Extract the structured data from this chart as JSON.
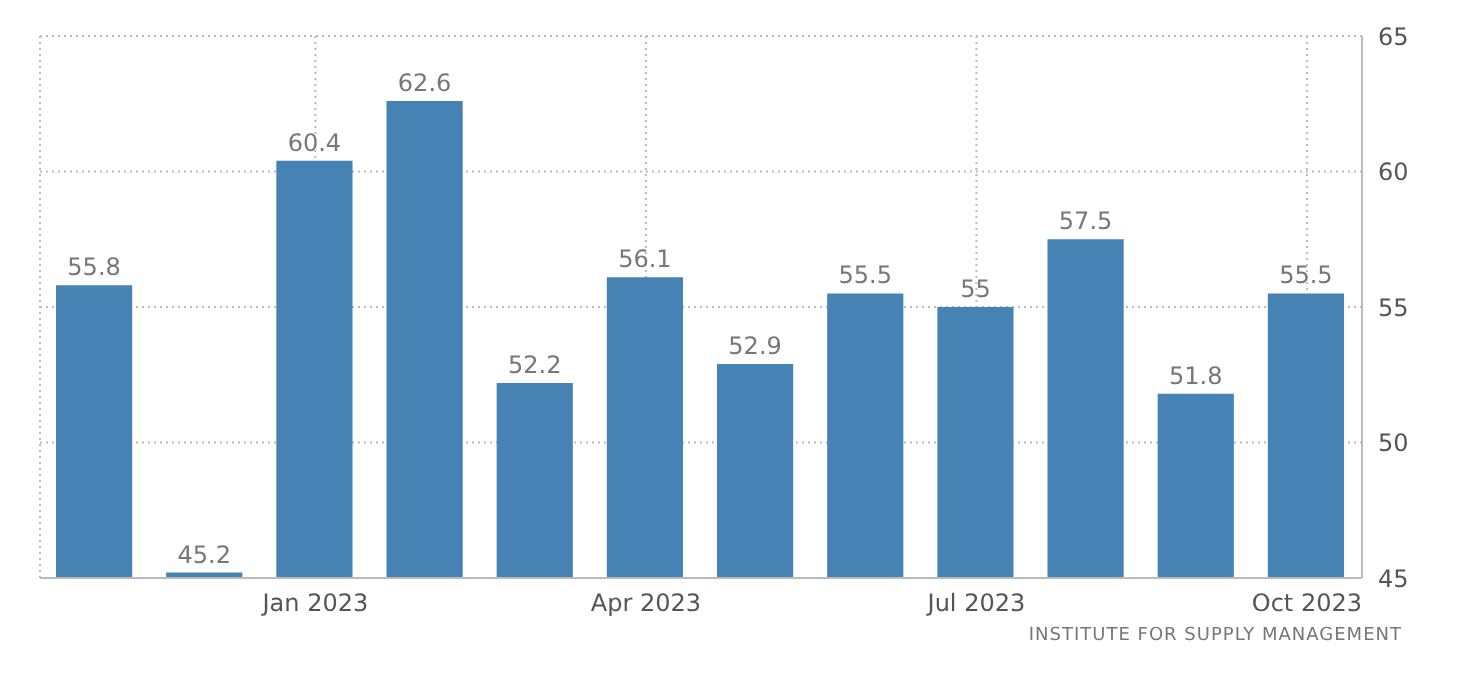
{
  "chart_data": {
    "type": "bar",
    "categories": [
      null,
      null,
      "Jan 2023",
      null,
      null,
      "Apr 2023",
      null,
      null,
      "Jul 2023",
      null,
      null,
      "Oct 2023"
    ],
    "values": [
      55.8,
      45.2,
      60.4,
      62.6,
      52.2,
      56.1,
      52.9,
      55.5,
      55,
      57.5,
      51.8,
      55.5
    ],
    "color": "#4682b4",
    "ylim": [
      45,
      65
    ],
    "yticks": [
      45,
      50,
      55,
      60,
      65
    ],
    "grid": true,
    "data_labels": true,
    "annotations": [
      "INSTITUTE FOR SUPPLY MANAGEMENT"
    ]
  }
}
